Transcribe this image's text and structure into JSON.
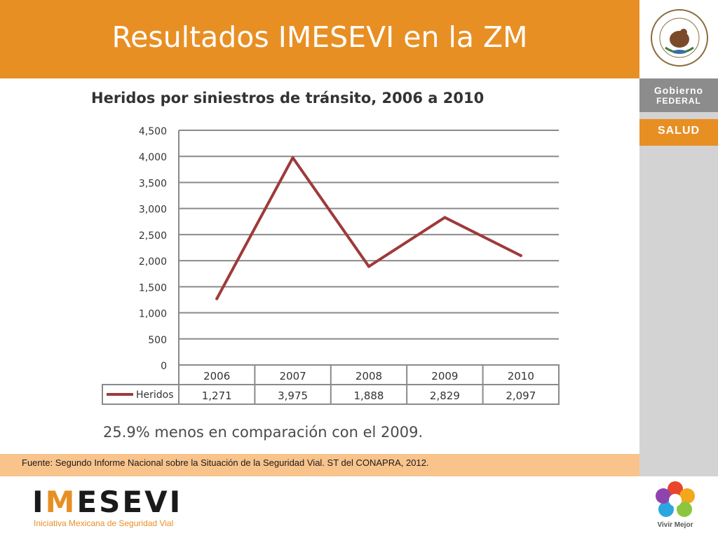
{
  "header": {
    "title": "Resultados IMESEVI en la ZM"
  },
  "sidebar": {
    "gobierno_line1": "Gobierno",
    "gobierno_line2": "FEDERAL",
    "salud": "SALUD",
    "vivir": "Vivir Mejor"
  },
  "logo": {
    "letters": [
      "I",
      "M",
      "E",
      "S",
      "E",
      "V",
      "I"
    ],
    "subtitle": "Iniciativa Mexicana de Seguridad Vial"
  },
  "note": "25.9% menos en comparación con el 2009.",
  "source": "Fuente: Segundo Informe Nacional sobre la Situación de la Seguridad Vial. ST del CONAPRA, 2012.",
  "colors": {
    "orange": "#E88F23",
    "series": "#9E3A3A",
    "source_band": "#F9C38C",
    "grey": "#8C8C8C"
  },
  "chart_data": {
    "type": "line",
    "title": "Heridos por siniestros de tránsito, 2006 a 2010",
    "categories": [
      "2006",
      "2007",
      "2008",
      "2009",
      "2010"
    ],
    "ylim": [
      0,
      4500
    ],
    "yticks": [
      "0",
      "500",
      "1,000",
      "1,500",
      "2,000",
      "2,500",
      "3,000",
      "3,500",
      "4,000",
      "4,500"
    ],
    "grid": true,
    "series": [
      {
        "name": "Heridos",
        "values": [
          1271,
          3975,
          1888,
          2829,
          2097
        ],
        "labels": [
          "1,271",
          "3,975",
          "1,888",
          "2,829",
          "2,097"
        ]
      }
    ]
  }
}
